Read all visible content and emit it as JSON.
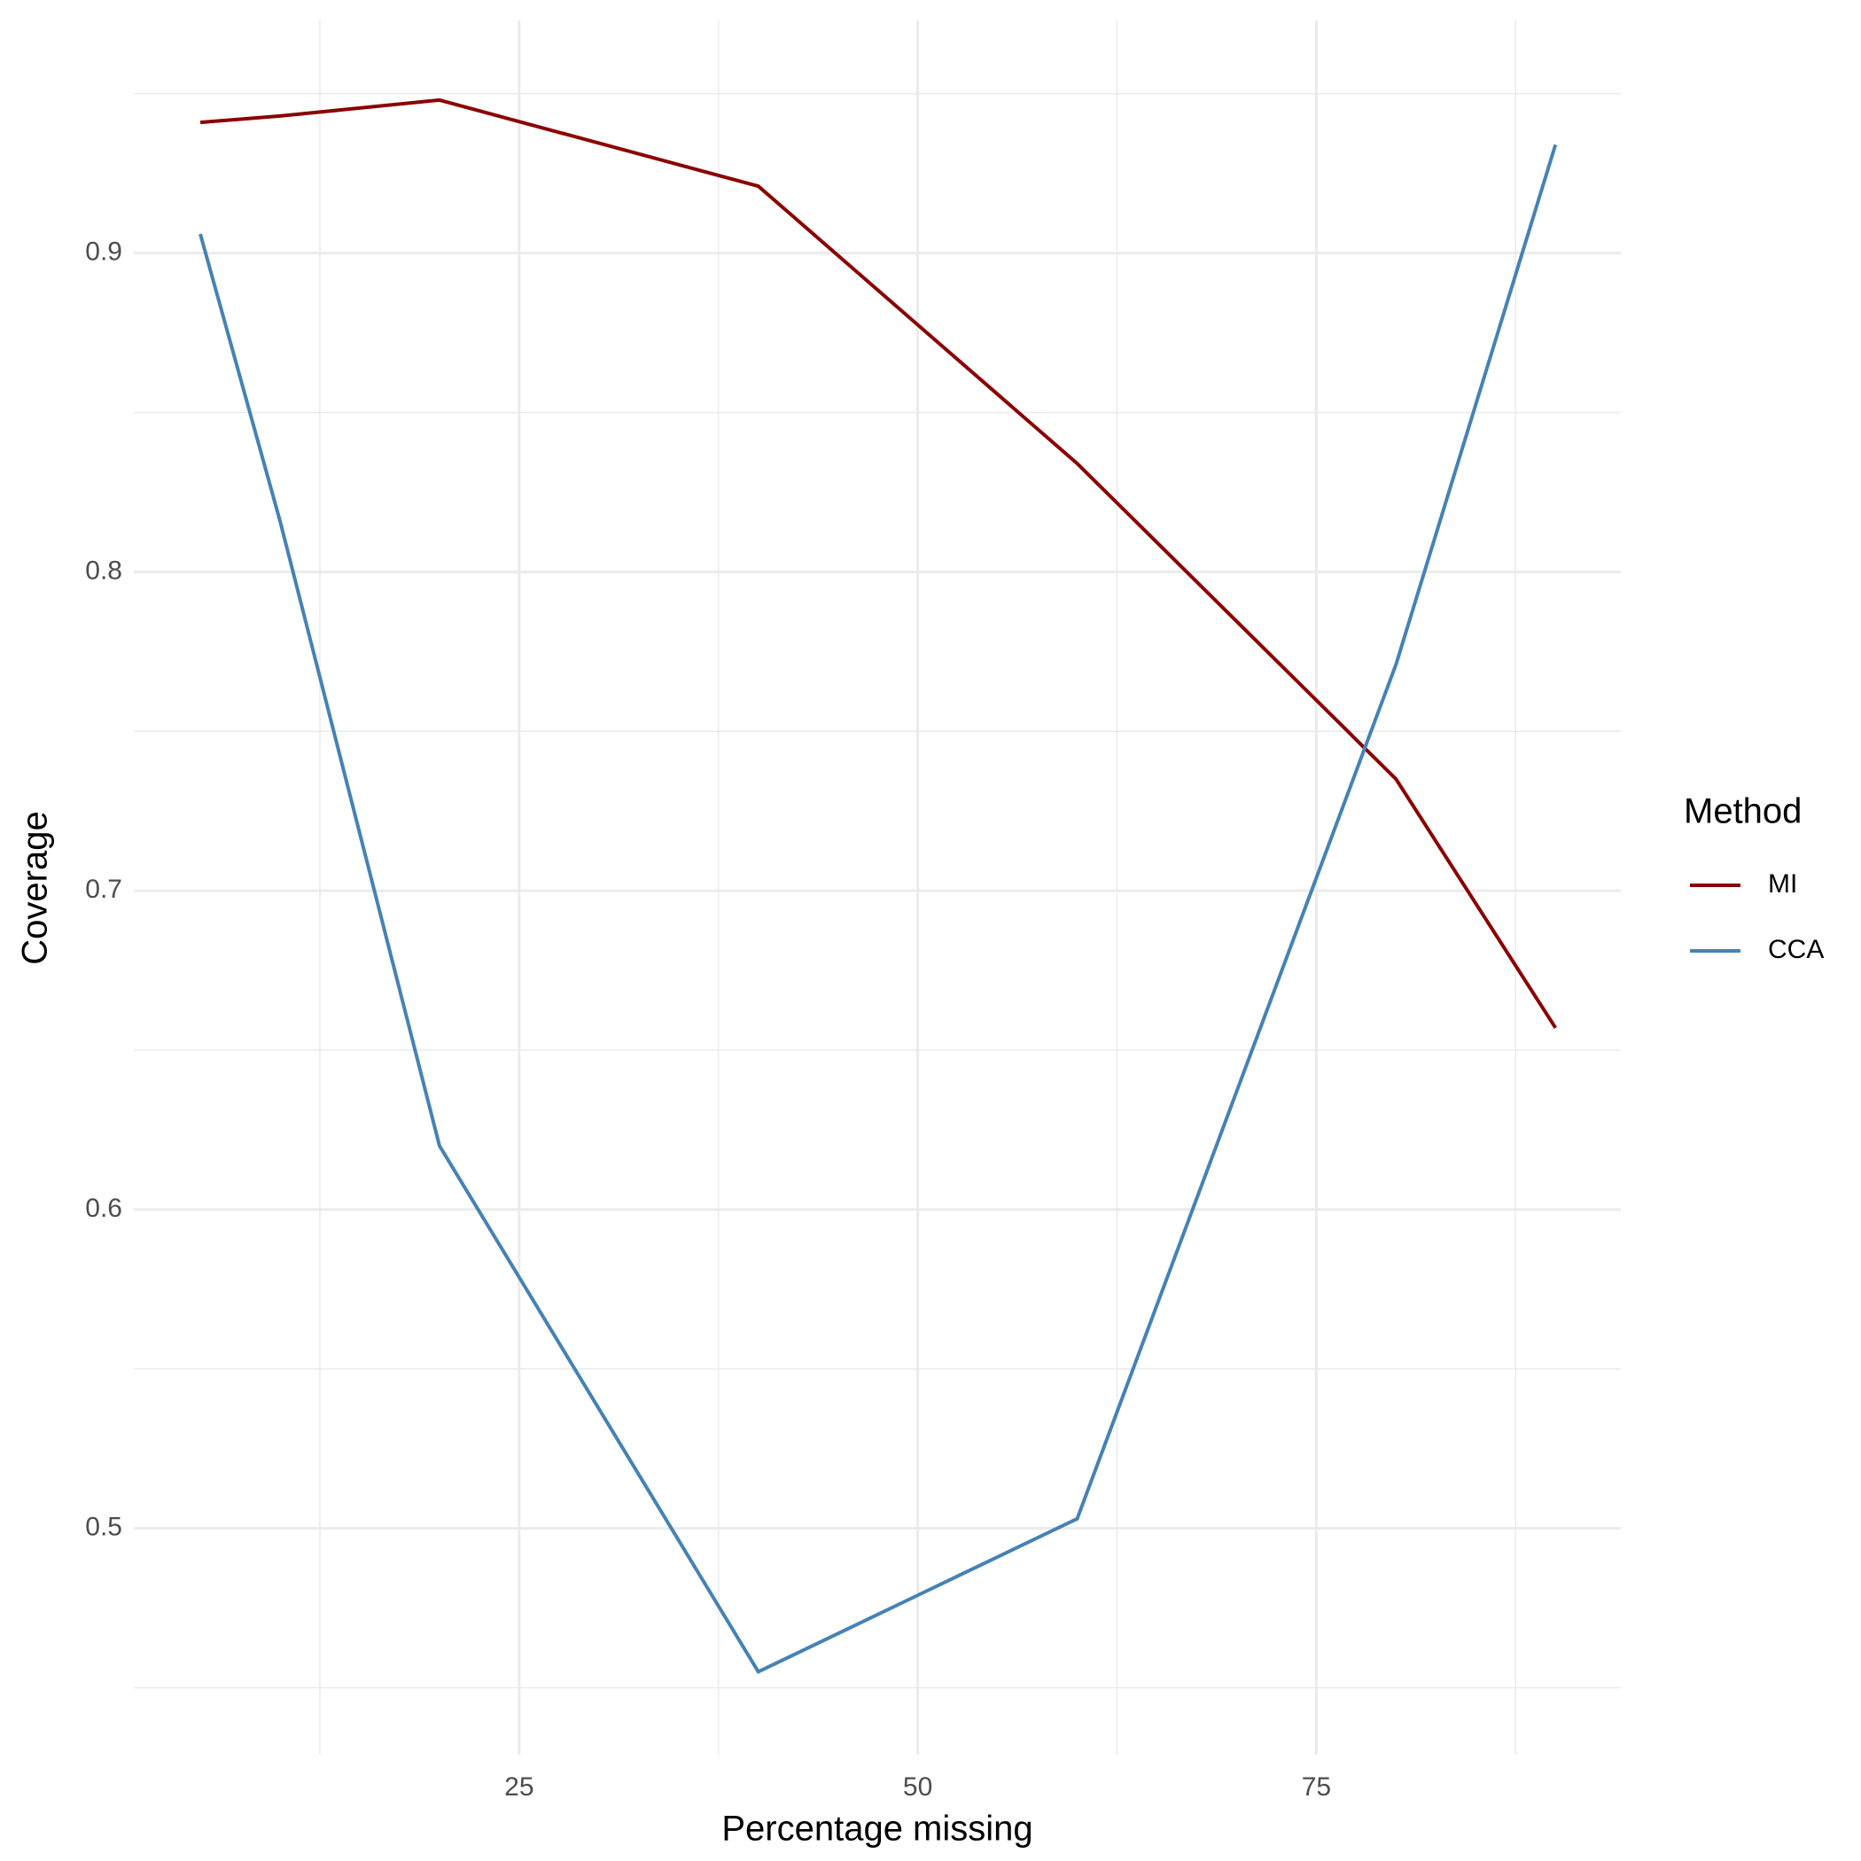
{
  "chart_data": {
    "type": "line",
    "x_label": "Percentage missing",
    "y_label": "Coverage",
    "x": [
      5,
      10,
      20,
      40,
      60,
      80,
      90
    ],
    "series": [
      {
        "name": "MI",
        "color": "#8b0000",
        "values": [
          0.941,
          0.943,
          0.948,
          0.921,
          0.834,
          0.735,
          0.657
        ]
      },
      {
        "name": "CCA",
        "color": "#4682b4",
        "values": [
          0.906,
          0.816,
          0.62,
          0.455,
          0.503,
          0.771,
          0.934
        ]
      }
    ],
    "xlim": [
      0.83,
      94.1
    ],
    "xticks": [
      25,
      50,
      75
    ],
    "ylim": [
      0.429,
      0.973
    ],
    "yticks": [
      0.5,
      0.6,
      0.7,
      0.8,
      0.9
    ],
    "grid": true,
    "minor_grid": true,
    "legend_title": "Method",
    "legend_position": "right"
  }
}
